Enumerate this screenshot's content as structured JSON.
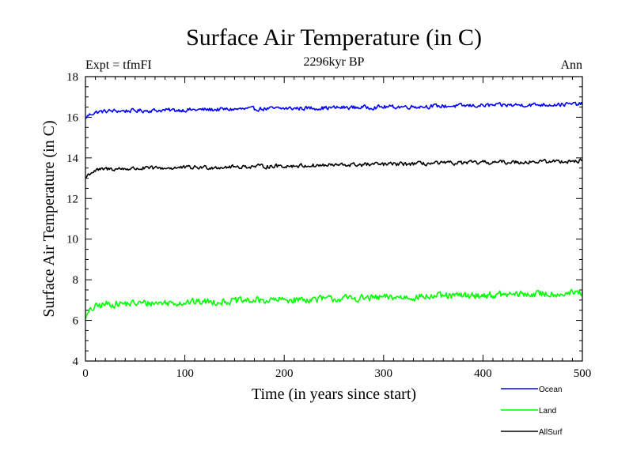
{
  "chart_data": {
    "type": "line",
    "title": "Surface Air Temperature (in C)",
    "subtitle": "2296kyr BP",
    "left_label": "Expt = tfmFI",
    "right_label": "Ann",
    "xlabel": "Time (in years since start)",
    "ylabel": "Surface Air Temperature (in C)",
    "xlim": [
      0,
      500
    ],
    "ylim": [
      4,
      18
    ],
    "x_ticks": [
      0,
      100,
      200,
      300,
      400,
      500
    ],
    "y_ticks": [
      4,
      6,
      8,
      10,
      12,
      14,
      16,
      18
    ],
    "legend_position": "bottom-right, below plot",
    "series": [
      {
        "name": "Ocean",
        "color": "#0000ff",
        "start": 15.95,
        "plateau": 16.3,
        "trend_end": 16.65,
        "noise": 0.09,
        "min": 15.95,
        "max": 16.8
      },
      {
        "name": "Land",
        "color": "#00ff00",
        "start": 6.05,
        "plateau": 6.8,
        "trend_end": 7.35,
        "noise": 0.16,
        "min": 6.0,
        "max": 7.6
      },
      {
        "name": "AllSurf",
        "color": "#000000",
        "start": 13.0,
        "plateau": 13.45,
        "trend_end": 13.85,
        "noise": 0.09,
        "min": 13.0,
        "max": 14.05
      }
    ]
  }
}
